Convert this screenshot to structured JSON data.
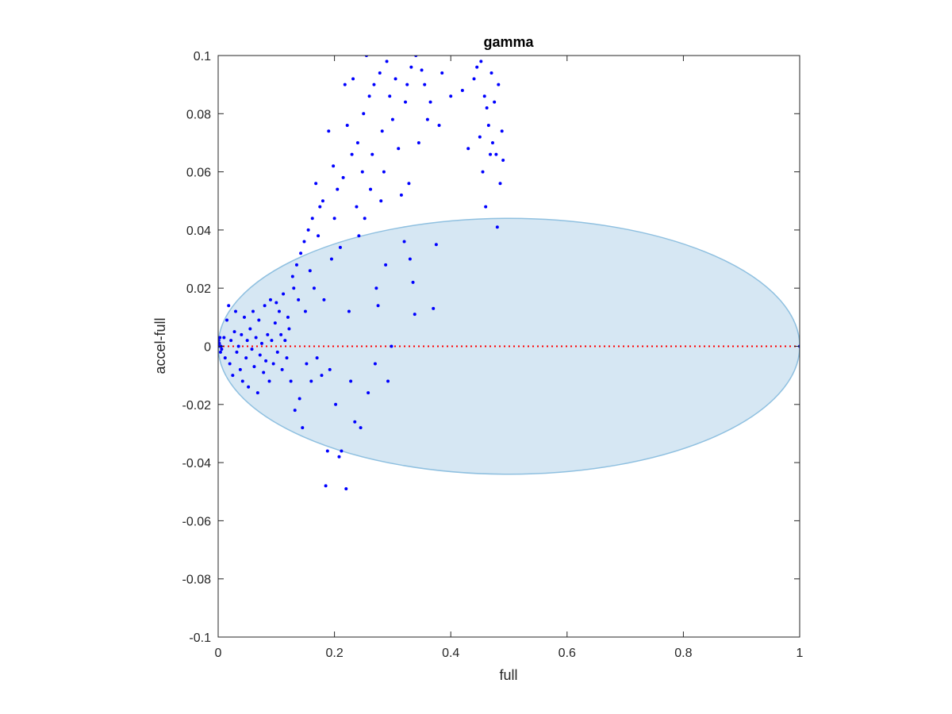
{
  "chart_data": {
    "type": "scatter",
    "title": "gamma",
    "xlabel": "full",
    "ylabel": "accel-full",
    "xlim": [
      0,
      1
    ],
    "ylim": [
      -0.1,
      0.1
    ],
    "xticks": [
      0,
      0.2,
      0.4,
      0.6,
      0.8,
      1
    ],
    "xtick_labels": [
      "0",
      "0.2",
      "0.4",
      "0.6",
      "0.8",
      "1"
    ],
    "yticks": [
      -0.1,
      -0.08,
      -0.06,
      -0.04,
      -0.02,
      0,
      0.02,
      0.04,
      0.06,
      0.08,
      0.1
    ],
    "ytick_labels": [
      "-0.1",
      "-0.08",
      "-0.06",
      "-0.04",
      "-0.02",
      "0",
      "0.02",
      "0.04",
      "0.06",
      "0.08",
      "0.1"
    ],
    "grid": false,
    "colors": {
      "points": "#0000ff",
      "ellipse_fill": "#d6e7f3",
      "ellipse_stroke": "#8fc0e0",
      "reference_line": "#ff0000",
      "axes": "#262626"
    },
    "reference_line": {
      "y": 0,
      "x_from": 0,
      "x_to": 1,
      "style": "dotted"
    },
    "ellipse": {
      "cx": 0.5,
      "cy": 0,
      "rx": 0.5,
      "ry": 0.044
    },
    "points": [
      [
        0.0,
        0.0
      ],
      [
        0.002,
        0.001
      ],
      [
        0.003,
        0.003
      ],
      [
        0.004,
        -0.002
      ],
      [
        0.005,
        0.0
      ],
      [
        0.001,
        0.002
      ],
      [
        0.006,
        -0.001
      ],
      [
        0.003,
        0.0
      ],
      [
        1.0,
        0.0
      ],
      [
        0.01,
        0.003
      ],
      [
        0.012,
        -0.004
      ],
      [
        0.015,
        0.009
      ],
      [
        0.018,
        0.014
      ],
      [
        0.02,
        -0.006
      ],
      [
        0.022,
        0.002
      ],
      [
        0.025,
        -0.01
      ],
      [
        0.028,
        0.005
      ],
      [
        0.03,
        0.012
      ],
      [
        0.032,
        -0.002
      ],
      [
        0.035,
        0.0
      ],
      [
        0.038,
        -0.008
      ],
      [
        0.04,
        0.004
      ],
      [
        0.042,
        -0.012
      ],
      [
        0.045,
        0.01
      ],
      [
        0.048,
        -0.004
      ],
      [
        0.05,
        0.002
      ],
      [
        0.052,
        -0.014
      ],
      [
        0.055,
        0.006
      ],
      [
        0.058,
        -0.001
      ],
      [
        0.06,
        0.012
      ],
      [
        0.062,
        -0.007
      ],
      [
        0.065,
        0.003
      ],
      [
        0.068,
        -0.016
      ],
      [
        0.07,
        0.009
      ],
      [
        0.072,
        -0.003
      ],
      [
        0.075,
        0.001
      ],
      [
        0.078,
        -0.009
      ],
      [
        0.08,
        0.014
      ],
      [
        0.082,
        -0.005
      ],
      [
        0.085,
        0.004
      ],
      [
        0.088,
        -0.012
      ],
      [
        0.09,
        0.016
      ],
      [
        0.092,
        0.002
      ],
      [
        0.095,
        -0.006
      ],
      [
        0.098,
        0.008
      ],
      [
        0.1,
        0.015
      ],
      [
        0.102,
        -0.002
      ],
      [
        0.105,
        0.012
      ],
      [
        0.108,
        0.004
      ],
      [
        0.11,
        -0.008
      ],
      [
        0.112,
        0.018
      ],
      [
        0.115,
        0.002
      ],
      [
        0.118,
        -0.004
      ],
      [
        0.12,
        0.01
      ],
      [
        0.122,
        0.006
      ],
      [
        0.125,
        -0.012
      ],
      [
        0.128,
        0.024
      ],
      [
        0.13,
        0.02
      ],
      [
        0.132,
        -0.022
      ],
      [
        0.135,
        0.028
      ],
      [
        0.138,
        0.016
      ],
      [
        0.14,
        -0.018
      ],
      [
        0.142,
        0.032
      ],
      [
        0.145,
        -0.028
      ],
      [
        0.148,
        0.036
      ],
      [
        0.15,
        0.012
      ],
      [
        0.152,
        -0.006
      ],
      [
        0.155,
        0.04
      ],
      [
        0.158,
        0.026
      ],
      [
        0.16,
        -0.012
      ],
      [
        0.162,
        0.044
      ],
      [
        0.165,
        0.02
      ],
      [
        0.168,
        0.056
      ],
      [
        0.17,
        -0.004
      ],
      [
        0.172,
        0.038
      ],
      [
        0.175,
        0.048
      ],
      [
        0.178,
        -0.01
      ],
      [
        0.18,
        0.05
      ],
      [
        0.182,
        0.016
      ],
      [
        0.185,
        -0.048
      ],
      [
        0.188,
        -0.036
      ],
      [
        0.19,
        0.074
      ],
      [
        0.192,
        -0.008
      ],
      [
        0.195,
        0.03
      ],
      [
        0.198,
        0.062
      ],
      [
        0.2,
        0.044
      ],
      [
        0.202,
        -0.02
      ],
      [
        0.205,
        0.054
      ],
      [
        0.208,
        -0.038
      ],
      [
        0.21,
        0.034
      ],
      [
        0.212,
        -0.036
      ],
      [
        0.215,
        0.058
      ],
      [
        0.218,
        0.09
      ],
      [
        0.22,
        -0.049
      ],
      [
        0.222,
        0.076
      ],
      [
        0.225,
        0.012
      ],
      [
        0.228,
        -0.012
      ],
      [
        0.23,
        0.066
      ],
      [
        0.232,
        0.092
      ],
      [
        0.235,
        -0.026
      ],
      [
        0.238,
        0.048
      ],
      [
        0.24,
        0.07
      ],
      [
        0.242,
        0.038
      ],
      [
        0.245,
        -0.028
      ],
      [
        0.248,
        0.06
      ],
      [
        0.25,
        0.08
      ],
      [
        0.252,
        0.044
      ],
      [
        0.255,
        0.1
      ],
      [
        0.258,
        -0.016
      ],
      [
        0.26,
        0.086
      ],
      [
        0.262,
        0.054
      ],
      [
        0.265,
        0.066
      ],
      [
        0.268,
        0.09
      ],
      [
        0.27,
        -0.006
      ],
      [
        0.272,
        0.02
      ],
      [
        0.275,
        0.014
      ],
      [
        0.278,
        0.094
      ],
      [
        0.28,
        0.05
      ],
      [
        0.282,
        0.074
      ],
      [
        0.285,
        0.06
      ],
      [
        0.288,
        0.028
      ],
      [
        0.29,
        0.098
      ],
      [
        0.292,
        -0.012
      ],
      [
        0.295,
        0.086
      ],
      [
        0.298,
        0.0
      ],
      [
        0.3,
        0.078
      ],
      [
        0.305,
        0.092
      ],
      [
        0.31,
        0.068
      ],
      [
        0.315,
        0.052
      ],
      [
        0.32,
        0.036
      ],
      [
        0.322,
        0.084
      ],
      [
        0.325,
        0.09
      ],
      [
        0.328,
        0.056
      ],
      [
        0.33,
        0.03
      ],
      [
        0.332,
        0.096
      ],
      [
        0.335,
        0.022
      ],
      [
        0.338,
        0.011
      ],
      [
        0.34,
        0.1
      ],
      [
        0.345,
        0.07
      ],
      [
        0.35,
        0.095
      ],
      [
        0.355,
        0.09
      ],
      [
        0.36,
        0.078
      ],
      [
        0.365,
        0.084
      ],
      [
        0.37,
        0.013
      ],
      [
        0.375,
        0.035
      ],
      [
        0.38,
        0.076
      ],
      [
        0.385,
        0.094
      ],
      [
        0.4,
        0.086
      ],
      [
        0.42,
        0.088
      ],
      [
        0.43,
        0.068
      ],
      [
        0.44,
        0.092
      ],
      [
        0.445,
        0.096
      ],
      [
        0.45,
        0.072
      ],
      [
        0.452,
        0.098
      ],
      [
        0.455,
        0.06
      ],
      [
        0.458,
        0.086
      ],
      [
        0.46,
        0.048
      ],
      [
        0.462,
        0.082
      ],
      [
        0.465,
        0.076
      ],
      [
        0.468,
        0.066
      ],
      [
        0.47,
        0.094
      ],
      [
        0.472,
        0.07
      ],
      [
        0.475,
        0.084
      ],
      [
        0.478,
        0.066
      ],
      [
        0.48,
        0.041
      ],
      [
        0.482,
        0.09
      ],
      [
        0.485,
        0.056
      ],
      [
        0.488,
        0.074
      ],
      [
        0.49,
        0.064
      ]
    ]
  }
}
